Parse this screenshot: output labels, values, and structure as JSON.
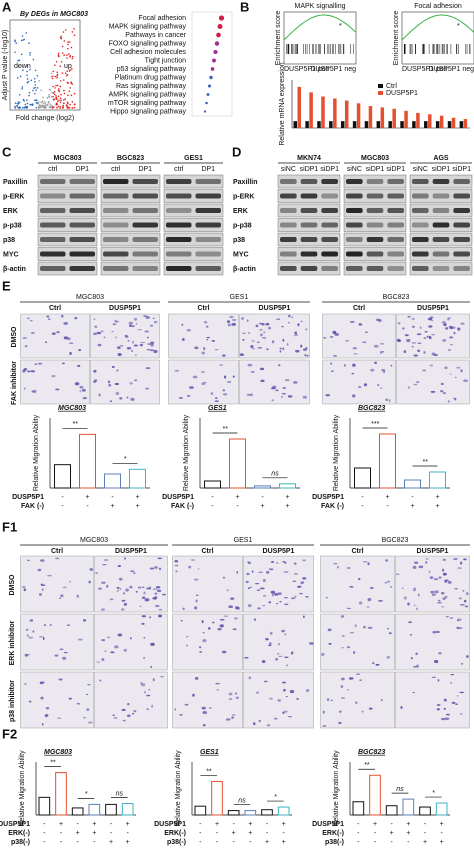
{
  "panel_A": {
    "letter": "A",
    "title": "By DEGs in MGC803",
    "down": "down",
    "up": "up",
    "y_label": "Adjust P value (-log10)",
    "x_label": "Fold change (log2)",
    "pathways": [
      {
        "name": "Focal adhesion",
        "highlight": true
      },
      {
        "name": "MAPK signaling pathway",
        "highlight": true
      },
      {
        "name": "Pathways in cancer",
        "highlight": false
      },
      {
        "name": "FOXO signaling pathway",
        "highlight": false
      },
      {
        "name": "Cell adhesion molecules",
        "highlight": false
      },
      {
        "name": "Tight junction",
        "highlight": false
      },
      {
        "name": "p53 signaling pathway",
        "highlight": false
      },
      {
        "name": "Platinum drug pathway",
        "highlight": true
      },
      {
        "name": "Ras signaling pathway",
        "highlight": false
      },
      {
        "name": "AMPK signaling pathway",
        "highlight": false
      },
      {
        "name": "mTOR signaling pathway",
        "highlight": false
      },
      {
        "name": "Hippo signaling pathway",
        "highlight": false
      }
    ]
  },
  "panel_B": {
    "letter": "B",
    "gsea": [
      "MAPK signalling",
      "Focal adhesion"
    ],
    "y_label": "Enrichment score",
    "star": "*",
    "pos": "DUSP5P1 pos",
    "neg": "DUSP5P1 neg",
    "bar_y_label": "Relative mRNA expression",
    "ylim": [
      0,
      7
    ],
    "series": [
      {
        "name": "Ctrl",
        "color": "#111111",
        "values": [
          1,
          1,
          1,
          1,
          1,
          1,
          1,
          1,
          1,
          1,
          1,
          1,
          1,
          1,
          1
        ]
      },
      {
        "name": "DUSP5P1",
        "color": "#e4502f",
        "values": [
          6,
          5.2,
          4.6,
          4.3,
          4,
          3.6,
          3.2,
          3,
          2.8,
          2.5,
          2.2,
          2,
          1.8,
          1.5,
          1.3
        ]
      }
    ]
  },
  "panel_C": {
    "letter": "C",
    "cells": [
      "MGC803",
      "BGC823",
      "GES1"
    ],
    "lanes": [
      "ctrl",
      "DP1"
    ],
    "proteins": [
      "Paxillin",
      "p-ERK",
      "ERK",
      "p-p38",
      "p38",
      "MYC",
      "β-actin"
    ]
  },
  "panel_D": {
    "letter": "D",
    "cells": [
      "MKN74",
      "MGC803",
      "AGS"
    ],
    "lanes": [
      "siNC",
      "siDP1",
      "siDP1"
    ],
    "proteins": [
      "Paxillin",
      "p-ERK",
      "ERK",
      "p-p38",
      "p38",
      "MYC",
      "β-actin"
    ]
  },
  "panel_E": {
    "letter": "E",
    "cells": [
      "MGC803",
      "GES1",
      "BGC823"
    ],
    "conditions": [
      "Ctrl",
      "DUSP5P1"
    ],
    "treatments": [
      "DMSO",
      "FAK inhibitor"
    ],
    "y_label": "Relative Migration Ability",
    "rows": [
      {
        "label": "DUSP5P1",
        "signs": [
          "-",
          "+",
          "-",
          "+"
        ]
      },
      {
        "label": "FAK (-)",
        "signs": [
          "-",
          "-",
          "+",
          "+"
        ]
      }
    ],
    "colors": [
      "#111111",
      "#e4502f",
      "#5b7fb5",
      "#3fb3c6"
    ],
    "charts": [
      {
        "title": "MGC803",
        "ylim": [
          0,
          3
        ],
        "values": [
          1,
          2.3,
          0.6,
          0.8
        ],
        "sig": [
          "**",
          "*"
        ]
      },
      {
        "title": "GES1",
        "ylim": [
          0,
          10
        ],
        "values": [
          1,
          7,
          0.3,
          0.6
        ],
        "sig": [
          "**",
          "ns"
        ]
      },
      {
        "title": "BGC823",
        "ylim": [
          0,
          3.5
        ],
        "values": [
          1,
          2.7,
          0.4,
          0.8
        ],
        "sig": [
          "***",
          "**"
        ]
      }
    ]
  },
  "panel_F1": {
    "letter": "F1",
    "cells": [
      "MGC803",
      "GES1",
      "BGC823"
    ],
    "conditions": [
      "Ctrl",
      "DUSP5P1"
    ],
    "treatments": [
      "DMSO",
      "ERK inhibitor",
      "p38 inhibitor"
    ]
  },
  "panel_F2": {
    "letter": "F2",
    "y_label": "Relative Migration Ability",
    "rows": [
      {
        "label": "DUSP5P1",
        "signs": [
          "-",
          "+",
          "-",
          "+",
          "-",
          "+"
        ]
      },
      {
        "label": "ERK(-)",
        "signs": [
          "-",
          "-",
          "+",
          "+",
          "-",
          "-"
        ]
      },
      {
        "label": "p38(-)",
        "signs": [
          "-",
          "-",
          "-",
          "-",
          "+",
          "+"
        ]
      }
    ],
    "colors": [
      "#111111",
      "#e4502f",
      "#111111",
      "#5b7fb5",
      "#111111",
      "#3fb3c6"
    ],
    "charts": [
      {
        "title": "MGC803",
        "ylim": [
          0,
          3
        ],
        "values": [
          1,
          2.4,
          0.4,
          0.6,
          0.6,
          0.65
        ],
        "sig": [
          "**",
          "*",
          "ns"
        ]
      },
      {
        "title": "GES1",
        "ylim": [
          0,
          6
        ],
        "values": [
          1,
          3.8,
          0.5,
          0.5,
          0.6,
          0.9
        ],
        "sig": [
          "**",
          "ns",
          "*"
        ]
      },
      {
        "title": "BGC823",
        "ylim": [
          0,
          4
        ],
        "values": [
          1,
          3,
          0.7,
          1.2,
          0.6,
          0.9
        ],
        "sig": [
          "**",
          "ns",
          "*"
        ]
      }
    ]
  }
}
